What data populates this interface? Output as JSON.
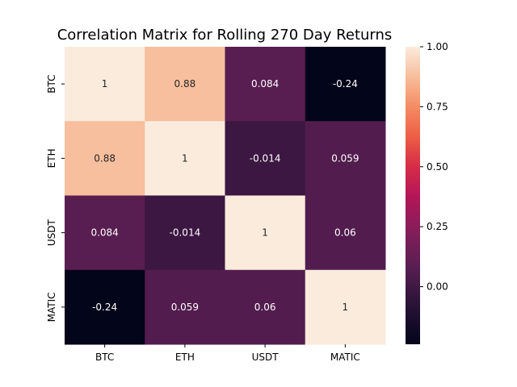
{
  "chart_data": {
    "type": "heatmap",
    "title": "Correlation Matrix for Rolling 270 Day Returns",
    "xlabel": "",
    "ylabel": "",
    "x_categories": [
      "BTC",
      "ETH",
      "USDT",
      "MATIC"
    ],
    "y_categories": [
      "BTC",
      "ETH",
      "USDT",
      "MATIC"
    ],
    "values": [
      [
        1,
        0.88,
        0.084,
        -0.24
      ],
      [
        0.88,
        1,
        -0.014,
        0.059
      ],
      [
        0.084,
        -0.014,
        1,
        0.06
      ],
      [
        -0.24,
        0.059,
        0.06,
        1
      ]
    ],
    "annotations": [
      [
        "1",
        "0.88",
        "0.084",
        "-0.24"
      ],
      [
        "0.88",
        "1",
        "-0.014",
        "0.059"
      ],
      [
        "0.084",
        "-0.014",
        "1",
        "0.06"
      ],
      [
        "-0.24",
        "0.059",
        "0.06",
        "1"
      ]
    ],
    "colorscale": "rocket",
    "vmin": -0.24,
    "vmax": 1,
    "colorbar_ticks": [
      1.0,
      0.75,
      0.5,
      0.25,
      0.0
    ],
    "colorbar_tick_labels": [
      "1.00",
      "0.75",
      "0.50",
      "0.25",
      "0.00"
    ],
    "grid": false
  }
}
